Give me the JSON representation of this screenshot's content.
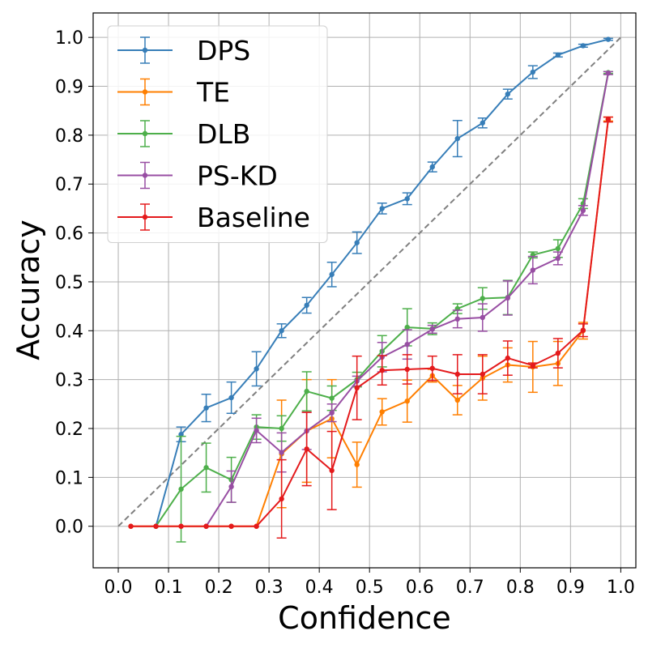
{
  "chart_data": {
    "type": "line",
    "xlabel": "Confidence",
    "ylabel": "Accuracy",
    "xlim": [
      -0.05,
      1.03
    ],
    "ylim": [
      -0.085,
      1.05
    ],
    "xticks": [
      0.0,
      0.1,
      0.2,
      0.3,
      0.4,
      0.5,
      0.6,
      0.7,
      0.8,
      0.9,
      1.0
    ],
    "yticks": [
      0.0,
      0.1,
      0.2,
      0.3,
      0.4,
      0.5,
      0.6,
      0.7,
      0.8,
      0.9,
      1.0
    ],
    "grid": true,
    "legend_position": "top-left",
    "reference_line": {
      "from": [
        0,
        0
      ],
      "to": [
        1,
        1
      ],
      "style": "dashed",
      "color": "#808080"
    },
    "x": [
      0.025,
      0.075,
      0.125,
      0.175,
      0.225,
      0.275,
      0.325,
      0.375,
      0.425,
      0.475,
      0.525,
      0.575,
      0.625,
      0.675,
      0.725,
      0.775,
      0.825,
      0.875,
      0.925,
      0.975
    ],
    "series": [
      {
        "name": "DPS",
        "color": "#377eb8",
        "x": [
          0.075,
          0.125,
          0.175,
          0.225,
          0.275,
          0.325,
          0.375,
          0.425,
          0.475,
          0.525,
          0.575,
          0.625,
          0.675,
          0.725,
          0.775,
          0.825,
          0.875,
          0.925,
          0.975
        ],
        "values": [
          0.0,
          0.188,
          0.242,
          0.263,
          0.322,
          0.4,
          0.452,
          0.515,
          0.58,
          0.65,
          0.67,
          0.735,
          0.793,
          0.825,
          0.884,
          0.929,
          0.964,
          0.983,
          0.996
        ],
        "errors": [
          0.0,
          0.015,
          0.028,
          0.032,
          0.035,
          0.014,
          0.016,
          0.025,
          0.022,
          0.011,
          0.012,
          0.01,
          0.037,
          0.01,
          0.01,
          0.013,
          0.004,
          0.003,
          0.002
        ]
      },
      {
        "name": "TE",
        "color": "#ff7f00",
        "x": [
          0.025,
          0.075,
          0.125,
          0.175,
          0.225,
          0.275,
          0.325,
          0.375,
          0.425,
          0.475,
          0.525,
          0.575,
          0.625,
          0.675,
          0.725,
          0.775,
          0.825,
          0.875,
          0.925,
          0.975
        ],
        "values": [
          0.0,
          0.0,
          0.0,
          0.0,
          0.0,
          0.0,
          0.148,
          0.195,
          0.22,
          0.126,
          0.234,
          0.256,
          0.308,
          0.258,
          0.303,
          0.33,
          0.326,
          0.333,
          0.4,
          0.833
        ],
        "errors": [
          0.0,
          0.0,
          0.0,
          0.0,
          0.0,
          0.0,
          0.11,
          0.105,
          0.08,
          0.046,
          0.027,
          0.043,
          0.013,
          0.03,
          0.045,
          0.035,
          0.052,
          0.045,
          0.017,
          0.004
        ]
      },
      {
        "name": "DLB",
        "color": "#4daf4a",
        "x": [
          0.075,
          0.125,
          0.175,
          0.225,
          0.275,
          0.325,
          0.375,
          0.425,
          0.475,
          0.525,
          0.575,
          0.625,
          0.675,
          0.725,
          0.775,
          0.825,
          0.875,
          0.925,
          0.975
        ],
        "values": [
          0.0,
          0.076,
          0.12,
          0.095,
          0.203,
          0.2,
          0.276,
          0.262,
          0.3,
          0.358,
          0.407,
          0.404,
          0.445,
          0.466,
          0.468,
          0.555,
          0.568,
          0.66,
          0.928
        ],
        "errors": [
          0.0,
          0.108,
          0.05,
          0.046,
          0.025,
          0.026,
          0.04,
          0.025,
          0.015,
          0.032,
          0.038,
          0.012,
          0.01,
          0.022,
          0.035,
          0.006,
          0.018,
          0.01,
          0.002
        ]
      },
      {
        "name": "PS-KD",
        "color": "#984ea3",
        "x": [
          0.175,
          0.225,
          0.275,
          0.325,
          0.375,
          0.425,
          0.475,
          0.525,
          0.575,
          0.625,
          0.675,
          0.725,
          0.775,
          0.825,
          0.875,
          0.925,
          0.975
        ],
        "values": [
          0.0,
          0.081,
          0.196,
          0.151,
          0.195,
          0.232,
          0.297,
          0.346,
          0.372,
          0.403,
          0.424,
          0.427,
          0.467,
          0.524,
          0.548,
          0.646,
          0.927
        ],
        "errors": [
          0.0,
          0.032,
          0.025,
          0.04,
          0.038,
          0.018,
          0.01,
          0.03,
          0.03,
          0.008,
          0.018,
          0.028,
          0.035,
          0.028,
          0.013,
          0.01,
          0.003
        ]
      },
      {
        "name": "Baseline",
        "color": "#e41a1c",
        "x": [
          0.025,
          0.075,
          0.125,
          0.175,
          0.225,
          0.275,
          0.325,
          0.375,
          0.425,
          0.475,
          0.525,
          0.575,
          0.625,
          0.675,
          0.725,
          0.775,
          0.825,
          0.875,
          0.925,
          0.975
        ],
        "values": [
          0.0,
          0.0,
          0.0,
          0.0,
          0.0,
          0.0,
          0.056,
          0.158,
          0.114,
          0.283,
          0.319,
          0.321,
          0.323,
          0.311,
          0.311,
          0.344,
          0.329,
          0.354,
          0.401,
          0.832
        ],
        "errors": [
          0.0,
          0.0,
          0.0,
          0.0,
          0.0,
          0.0,
          0.08,
          0.075,
          0.08,
          0.065,
          0.03,
          0.03,
          0.025,
          0.04,
          0.04,
          0.035,
          0.005,
          0.03,
          0.013,
          0.005
        ]
      }
    ]
  }
}
